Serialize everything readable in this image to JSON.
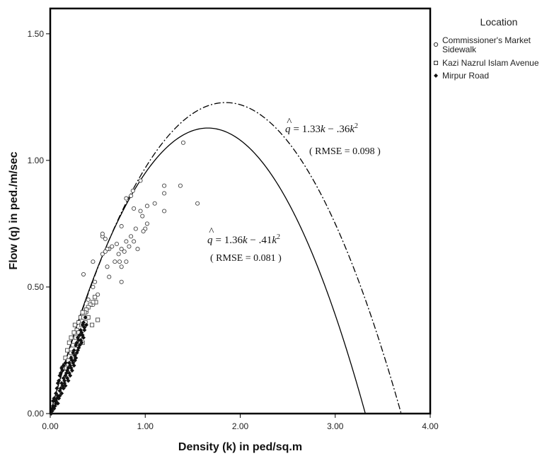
{
  "chart_data": {
    "type": "scatter",
    "title": "",
    "xlabel": "Density (k) in ped/sq.m",
    "ylabel": "Flow (q) in ped./m/sec",
    "xlim": [
      0,
      4
    ],
    "ylim": [
      0,
      1.6
    ],
    "xticks": [
      0,
      1,
      2,
      3,
      4
    ],
    "xtick_labels": [
      "0.00",
      "1.00",
      "2.00",
      "3.00",
      "4.00"
    ],
    "yticks": [
      0,
      0.5,
      1,
      1.5
    ],
    "ytick_labels": [
      "0.00",
      "0.50",
      "1.00",
      "1.50"
    ],
    "grid": false,
    "legend": {
      "title": "Location",
      "placement": "top-right-outside",
      "entries": [
        {
          "label_lines": [
            "Commissioner's Market",
            "Sidewalk"
          ],
          "marker": "circle"
        },
        {
          "label_lines": [
            "Kazi Nazrul Islam Avenue"
          ],
          "marker": "square"
        },
        {
          "label_lines": [
            "Mirpur Road"
          ],
          "marker": "diamond-filled"
        }
      ]
    },
    "series": [
      {
        "marker": "circle",
        "points": [
          [
            0.95,
            0.92
          ],
          [
            0.87,
            0.88
          ],
          [
            0.85,
            0.86
          ],
          [
            0.8,
            0.85
          ],
          [
            1.4,
            1.07
          ],
          [
            1.37,
            0.9
          ],
          [
            1.2,
            0.9
          ],
          [
            1.2,
            0.87
          ],
          [
            1.55,
            0.83
          ],
          [
            1.1,
            0.83
          ],
          [
            1.02,
            0.82
          ],
          [
            0.88,
            0.81
          ],
          [
            0.95,
            0.8
          ],
          [
            1.2,
            0.8
          ],
          [
            0.55,
            0.7
          ],
          [
            0.58,
            0.69
          ],
          [
            1.02,
            0.75
          ],
          [
            1.0,
            0.73
          ],
          [
            0.98,
            0.72
          ],
          [
            0.9,
            0.73
          ],
          [
            0.75,
            0.74
          ],
          [
            0.85,
            0.7
          ],
          [
            0.8,
            0.68
          ],
          [
            0.7,
            0.67
          ],
          [
            0.65,
            0.66
          ],
          [
            0.62,
            0.65
          ],
          [
            0.6,
            0.65
          ],
          [
            0.58,
            0.64
          ],
          [
            0.55,
            0.63
          ],
          [
            0.72,
            0.63
          ],
          [
            0.75,
            0.65
          ],
          [
            0.78,
            0.64
          ],
          [
            0.92,
            0.65
          ],
          [
            0.68,
            0.6
          ],
          [
            0.73,
            0.6
          ],
          [
            0.6,
            0.58
          ],
          [
            0.75,
            0.58
          ],
          [
            0.8,
            0.6
          ],
          [
            0.62,
            0.54
          ],
          [
            0.75,
            0.52
          ],
          [
            0.45,
            0.6
          ],
          [
            0.35,
            0.55
          ],
          [
            0.47,
            0.52
          ],
          [
            0.45,
            0.5
          ],
          [
            0.5,
            0.47
          ],
          [
            0.4,
            0.45
          ],
          [
            0.45,
            0.43
          ],
          [
            0.38,
            0.4
          ],
          [
            0.55,
            0.71
          ],
          [
            0.88,
            0.68
          ],
          [
            0.83,
            0.66
          ],
          [
            0.97,
            0.78
          ]
        ]
      },
      {
        "marker": "square",
        "points": [
          [
            0.47,
            0.46
          ],
          [
            0.48,
            0.44
          ],
          [
            0.45,
            0.44
          ],
          [
            0.42,
            0.43
          ],
          [
            0.5,
            0.37
          ],
          [
            0.4,
            0.42
          ],
          [
            0.38,
            0.41
          ],
          [
            0.36,
            0.4
          ],
          [
            0.32,
            0.38
          ],
          [
            0.35,
            0.38
          ],
          [
            0.3,
            0.36
          ],
          [
            0.33,
            0.35
          ],
          [
            0.28,
            0.33
          ],
          [
            0.25,
            0.32
          ],
          [
            0.27,
            0.3
          ],
          [
            0.22,
            0.3
          ],
          [
            0.2,
            0.28
          ],
          [
            0.24,
            0.27
          ],
          [
            0.18,
            0.25
          ],
          [
            0.22,
            0.24
          ],
          [
            0.16,
            0.22
          ],
          [
            0.19,
            0.21
          ],
          [
            0.15,
            0.19
          ],
          [
            0.13,
            0.18
          ],
          [
            0.34,
            0.28
          ],
          [
            0.3,
            0.32
          ],
          [
            0.26,
            0.35
          ],
          [
            0.4,
            0.38
          ],
          [
            0.37,
            0.36
          ],
          [
            0.31,
            0.3
          ],
          [
            0.28,
            0.27
          ],
          [
            0.34,
            0.4
          ],
          [
            0.23,
            0.22
          ],
          [
            0.17,
            0.18
          ],
          [
            0.44,
            0.35
          ]
        ]
      },
      {
        "marker": "diamond-filled",
        "points": [
          [
            0.02,
            0.01
          ],
          [
            0.03,
            0.03
          ],
          [
            0.04,
            0.02
          ],
          [
            0.05,
            0.05
          ],
          [
            0.06,
            0.04
          ],
          [
            0.07,
            0.06
          ],
          [
            0.08,
            0.07
          ],
          [
            0.09,
            0.06
          ],
          [
            0.1,
            0.09
          ],
          [
            0.11,
            0.1
          ],
          [
            0.12,
            0.12
          ],
          [
            0.13,
            0.11
          ],
          [
            0.14,
            0.14
          ],
          [
            0.15,
            0.13
          ],
          [
            0.16,
            0.15
          ],
          [
            0.17,
            0.16
          ],
          [
            0.18,
            0.17
          ],
          [
            0.19,
            0.18
          ],
          [
            0.2,
            0.2
          ],
          [
            0.21,
            0.19
          ],
          [
            0.22,
            0.22
          ],
          [
            0.23,
            0.21
          ],
          [
            0.24,
            0.24
          ],
          [
            0.25,
            0.25
          ],
          [
            0.26,
            0.23
          ],
          [
            0.27,
            0.27
          ],
          [
            0.28,
            0.28
          ],
          [
            0.29,
            0.3
          ],
          [
            0.3,
            0.29
          ],
          [
            0.31,
            0.31
          ],
          [
            0.32,
            0.33
          ],
          [
            0.33,
            0.32
          ],
          [
            0.34,
            0.35
          ],
          [
            0.35,
            0.36
          ],
          [
            0.36,
            0.34
          ],
          [
            0.37,
            0.38
          ],
          [
            0.08,
            0.12
          ],
          [
            0.1,
            0.15
          ],
          [
            0.12,
            0.18
          ],
          [
            0.14,
            0.19
          ],
          [
            0.16,
            0.2
          ],
          [
            0.06,
            0.08
          ],
          [
            0.09,
            0.13
          ],
          [
            0.11,
            0.16
          ],
          [
            0.13,
            0.17
          ],
          [
            0.05,
            0.03
          ],
          [
            0.03,
            0.05
          ],
          [
            0.07,
            0.1
          ],
          [
            0.15,
            0.12
          ],
          [
            0.18,
            0.14
          ],
          [
            0.2,
            0.16
          ],
          [
            0.22,
            0.18
          ],
          [
            0.24,
            0.2
          ],
          [
            0.26,
            0.21
          ],
          [
            0.28,
            0.24
          ],
          [
            0.3,
            0.26
          ],
          [
            0.33,
            0.28
          ],
          [
            0.35,
            0.3
          ],
          [
            0.01,
            0.0
          ],
          [
            0.02,
            0.02
          ],
          [
            0.04,
            0.06
          ],
          [
            0.06,
            0.05
          ],
          [
            0.08,
            0.04
          ],
          [
            0.1,
            0.07
          ],
          [
            0.12,
            0.08
          ],
          [
            0.14,
            0.1
          ],
          [
            0.16,
            0.11
          ],
          [
            0.19,
            0.13
          ],
          [
            0.21,
            0.15
          ],
          [
            0.23,
            0.17
          ],
          [
            0.25,
            0.19
          ],
          [
            0.27,
            0.22
          ],
          [
            0.29,
            0.25
          ],
          [
            0.31,
            0.27
          ],
          [
            0.32,
            0.29
          ],
          [
            0.34,
            0.31
          ],
          [
            0.36,
            0.33
          ],
          [
            0.38,
            0.35
          ]
        ]
      }
    ],
    "fits": [
      {
        "style": "solid",
        "a": 1.36,
        "b": 0.41,
        "eq_prefix": "= 1.36",
        "eq_mid": " − .41",
        "rmse_text": "( RMSE = 0.081 )"
      },
      {
        "style": "dash-dot",
        "a": 1.33,
        "b": 0.36,
        "eq_prefix": "= 1.33",
        "eq_mid": " − .36",
        "rmse_text": "( RMSE = 0.098 )"
      }
    ],
    "equation_symbols": {
      "q": "q",
      "hat": "^",
      "k": "k",
      "sq": "2"
    }
  }
}
